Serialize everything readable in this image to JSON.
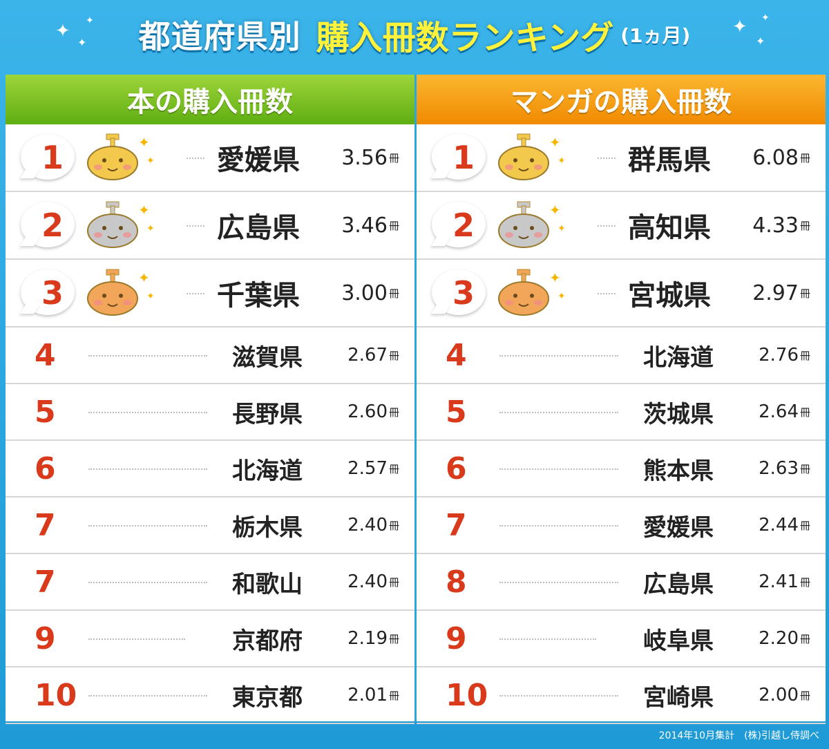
{
  "header": {
    "title_main": "都道府県別",
    "title_accent": "購入冊数ランキング",
    "title_sub": "(1ヵ月)"
  },
  "chart_data": [
    {
      "type": "table",
      "title": "本の購入冊数",
      "unit": "冊",
      "accent_color": "#7cc127",
      "rows": [
        {
          "rank": "1",
          "prefecture": "愛媛県",
          "value": "3.56",
          "medal": "gold"
        },
        {
          "rank": "2",
          "prefecture": "広島県",
          "value": "3.46",
          "medal": "silver"
        },
        {
          "rank": "3",
          "prefecture": "千葉県",
          "value": "3.00",
          "medal": "bronze"
        },
        {
          "rank": "4",
          "prefecture": "滋賀県",
          "value": "2.67"
        },
        {
          "rank": "5",
          "prefecture": "長野県",
          "value": "2.60"
        },
        {
          "rank": "6",
          "prefecture": "北海道",
          "value": "2.57"
        },
        {
          "rank": "7",
          "prefecture": "栃木県",
          "value": "2.40"
        },
        {
          "rank": "7",
          "prefecture": "和歌山",
          "value": "2.40"
        },
        {
          "rank": "9",
          "prefecture": "京都府",
          "value": "2.19"
        },
        {
          "rank": "10",
          "prefecture": "東京都",
          "value": "2.01"
        }
      ]
    },
    {
      "type": "table",
      "title": "マンガの購入冊数",
      "unit": "冊",
      "accent_color": "#f49c10",
      "rows": [
        {
          "rank": "1",
          "prefecture": "群馬県",
          "value": "6.08",
          "medal": "gold"
        },
        {
          "rank": "2",
          "prefecture": "高知県",
          "value": "4.33",
          "medal": "silver"
        },
        {
          "rank": "3",
          "prefecture": "宮城県",
          "value": "2.97",
          "medal": "bronze"
        },
        {
          "rank": "4",
          "prefecture": "北海道",
          "value": "2.76"
        },
        {
          "rank": "5",
          "prefecture": "茨城県",
          "value": "2.64"
        },
        {
          "rank": "6",
          "prefecture": "熊本県",
          "value": "2.63"
        },
        {
          "rank": "7",
          "prefecture": "愛媛県",
          "value": "2.44"
        },
        {
          "rank": "8",
          "prefecture": "広島県",
          "value": "2.41"
        },
        {
          "rank": "9",
          "prefecture": "岐阜県",
          "value": "2.20"
        },
        {
          "rank": "10",
          "prefecture": "宮崎県",
          "value": "2.00"
        }
      ]
    }
  ],
  "colors": {
    "background": "#29a7e1",
    "rank_text": "#d83a1b",
    "title_accent": "#fff23a",
    "gold": "#f2c94c",
    "silver": "#c8c8c8",
    "bronze": "#f2a65a"
  },
  "footer": {
    "note": "2014年10月集計　(株)引越し侍調べ"
  }
}
